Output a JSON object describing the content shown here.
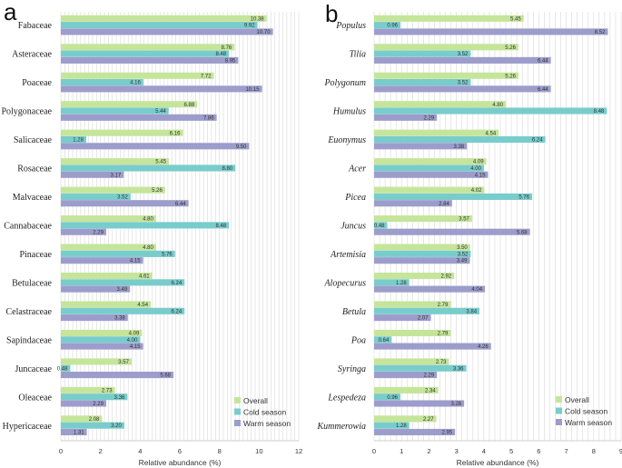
{
  "series_colors": {
    "Overall": "#c5e59b",
    "Cold season": "#79cccc",
    "Warm season": "#9d9dcc"
  },
  "chart_data": [
    {
      "type": "bar",
      "orientation": "horizontal",
      "panel_label": "a",
      "italic_categories": false,
      "xlabel": "Relative abundance (%)",
      "xlim": [
        0,
        12
      ],
      "xticks": [
        "0",
        "2",
        "4",
        "6",
        "8",
        "10",
        "12"
      ],
      "grid": true,
      "legend_position": "bottom-right",
      "categories": [
        "Fabaceae",
        "Asteraceae",
        "Poaceae",
        "Polygonaceae",
        "Salicaceae",
        "Rosaceae",
        "Malvaceae",
        "Cannabaceae",
        "Pinaceae",
        "Betulaceae",
        "Celastraceae",
        "Sapindaceae",
        "Juncaceae",
        "Oleaceae",
        "Hypericaceae"
      ],
      "series": [
        {
          "name": "Overall",
          "values": [
            10.38,
            8.76,
            7.72,
            6.88,
            6.16,
            5.45,
            5.26,
            4.8,
            4.8,
            4.61,
            4.54,
            4.09,
            3.57,
            2.73,
            2.08
          ],
          "labels": [
            "10.38",
            "8.76",
            "7.72",
            "6.88",
            "6.16",
            "5.45",
            "5.26",
            "4.80",
            "4.80",
            "4.61",
            "4.54",
            "4.09",
            "3.57",
            "2.73",
            "2.08"
          ]
        },
        {
          "name": "Cold season",
          "values": [
            9.92,
            8.48,
            4.16,
            5.44,
            1.28,
            8.8,
            3.52,
            8.48,
            5.76,
            6.24,
            6.24,
            4.0,
            0.48,
            3.36,
            3.2
          ],
          "labels": [
            "9.92",
            "8.48",
            "4.16",
            "5.44",
            "1.28",
            "8.80",
            "3.52",
            "8.48",
            "5.76",
            "6.24",
            "6.24",
            "4.00",
            "0.48",
            "3.36",
            "3.20"
          ]
        },
        {
          "name": "Warm season",
          "values": [
            10.7,
            8.95,
            10.15,
            7.86,
            9.5,
            3.17,
            6.44,
            2.29,
            4.15,
            3.49,
            3.38,
            4.15,
            5.68,
            2.29,
            1.31
          ],
          "labels": [
            "10.70",
            "8.95",
            "10.15",
            "7.86",
            "9.50",
            "3.17",
            "6.44",
            "2.29",
            "4.15",
            "3.49",
            "3.38",
            "4.15",
            "5.68",
            "2.29",
            "1.31"
          ]
        }
      ]
    },
    {
      "type": "bar",
      "orientation": "horizontal",
      "panel_label": "b",
      "italic_categories": true,
      "xlabel": "Relative abundance (%)",
      "xlim": [
        0,
        9
      ],
      "xticks": [
        "0",
        "1",
        "2",
        "3",
        "4",
        "5",
        "6",
        "7",
        "8",
        "9"
      ],
      "grid": true,
      "legend_position": "bottom-right",
      "categories": [
        "Populus",
        "Tilia",
        "Polygonum",
        "Humulus",
        "Euonymus",
        "Acer",
        "Picea",
        "Juncus",
        "Artemisia",
        "Alopecurus",
        "Betula",
        "Poa",
        "Syringa",
        "Lespedeza",
        "Kummerowia"
      ],
      "series": [
        {
          "name": "Overall",
          "values": [
            5.45,
            5.26,
            5.26,
            4.8,
            4.54,
            4.09,
            4.02,
            3.57,
            3.5,
            2.92,
            2.79,
            2.79,
            2.73,
            2.34,
            2.27
          ],
          "labels": [
            "5.45",
            "5.26",
            "5.26",
            "4.80",
            "4.54",
            "4.09",
            "4.02",
            "3.57",
            "3.50",
            "2.92",
            "2.79",
            "2.79",
            "2.73",
            "2.34",
            "2.27"
          ]
        },
        {
          "name": "Cold season",
          "values": [
            0.96,
            3.52,
            3.52,
            8.48,
            6.24,
            4.0,
            5.76,
            0.48,
            3.52,
            1.28,
            3.84,
            0.64,
            3.36,
            0.96,
            1.28
          ],
          "labels": [
            "0.96",
            "3.52",
            "3.52",
            "8.48",
            "6.24",
            "4.00",
            "5.76",
            "0.48",
            "3.52",
            "1.28",
            "3.84",
            "0.64",
            "3.36",
            "0.96",
            "1.28"
          ]
        },
        {
          "name": "Warm season",
          "values": [
            8.52,
            6.44,
            6.44,
            2.29,
            3.38,
            4.15,
            2.84,
            5.68,
            3.49,
            4.04,
            2.07,
            4.26,
            2.29,
            3.28,
            2.95
          ],
          "labels": [
            "8.52",
            "6.44",
            "6.44",
            "2.29",
            "3.38",
            "4.15",
            "2.84",
            "5.68",
            "3.49",
            "4.04",
            "2.07",
            "4.26",
            "2.29",
            "3.28",
            "2.95"
          ]
        }
      ]
    }
  ]
}
